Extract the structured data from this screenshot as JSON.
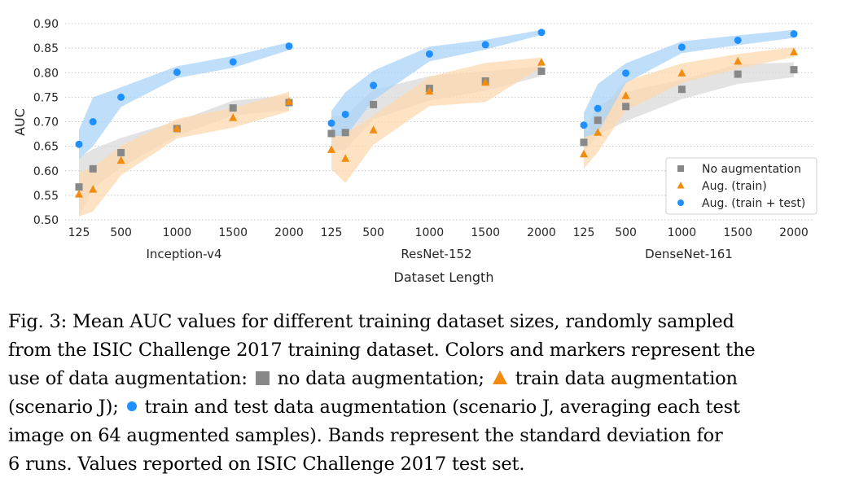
{
  "chart_data": {
    "type": "scatter",
    "ylabel": "AUC",
    "xlabel": "Dataset Length",
    "ylim": [
      0.5,
      0.9
    ],
    "yticks": [
      "0.50",
      "0.55",
      "0.60",
      "0.65",
      "0.70",
      "0.75",
      "0.80",
      "0.85",
      "0.90"
    ],
    "xticks": [
      "125",
      "500",
      "1000",
      "1500",
      "2000"
    ],
    "x_values": [
      125,
      250,
      500,
      1000,
      1500,
      2000
    ],
    "grid": true,
    "legend_position": "lower-right",
    "legend": [
      {
        "name": "No augmentation",
        "marker": "square",
        "color": "#888888"
      },
      {
        "name": "Aug. (train)",
        "marker": "triangle",
        "color": "#f28c0f"
      },
      {
        "name": "Aug. (train + test)",
        "marker": "circle",
        "color": "#1e90ff"
      }
    ],
    "panels": [
      {
        "title": "Inception-v4",
        "series": [
          {
            "name": "No augmentation",
            "values": [
              0.567,
              0.604,
              0.637,
              0.686,
              0.728,
              0.739
            ],
            "band": [
              0.06,
              0.04,
              0.03,
              0.015,
              0.015,
              0.015
            ]
          },
          {
            "name": "Aug. (train)",
            "values": [
              0.552,
              0.562,
              0.621,
              0.686,
              0.708,
              0.741
            ],
            "band": [
              0.045,
              0.045,
              0.03,
              0.02,
              0.02,
              0.02
            ]
          },
          {
            "name": "Aug. (train + test)",
            "values": [
              0.654,
              0.7,
              0.75,
              0.801,
              0.822,
              0.854
            ],
            "band": [
              0.03,
              0.05,
              0.02,
              0.012,
              0.012,
              0.008
            ]
          }
        ]
      },
      {
        "title": "ResNet-152",
        "series": [
          {
            "name": "No augmentation",
            "values": [
              0.676,
              0.678,
              0.735,
              0.768,
              0.783,
              0.803
            ],
            "band": [
              0.035,
              0.035,
              0.03,
              0.025,
              0.02,
              0.01
            ]
          },
          {
            "name": "Aug. (train)",
            "values": [
              0.643,
              0.625,
              0.683,
              0.762,
              0.78,
              0.821
            ],
            "band": [
              0.04,
              0.05,
              0.03,
              0.03,
              0.04,
              0.01
            ]
          },
          {
            "name": "Aug. (train + test)",
            "values": [
              0.697,
              0.715,
              0.774,
              0.838,
              0.857,
              0.882
            ],
            "band": [
              0.025,
              0.045,
              0.03,
              0.015,
              0.01,
              0.005
            ]
          }
        ]
      },
      {
        "title": "DenseNet-161",
        "series": [
          {
            "name": "No augmentation",
            "values": [
              0.658,
              0.703,
              0.731,
              0.766,
              0.797,
              0.806
            ],
            "band": [
              0.02,
              0.03,
              0.03,
              0.02,
              0.02,
              0.015
            ]
          },
          {
            "name": "Aug. (train)",
            "values": [
              0.634,
              0.678,
              0.753,
              0.799,
              0.823,
              0.842
            ],
            "band": [
              0.03,
              0.04,
              0.03,
              0.02,
              0.015,
              0.01
            ]
          },
          {
            "name": "Aug. (train + test)",
            "values": [
              0.693,
              0.727,
              0.799,
              0.852,
              0.866,
              0.879
            ],
            "band": [
              0.025,
              0.05,
              0.02,
              0.012,
              0.01,
              0.008
            ]
          }
        ]
      }
    ]
  },
  "caption": {
    "line1": "Fig. 3: Mean AUC values for different training dataset sizes, randomly sampled",
    "line2": "from the ISIC Challenge 2017 training dataset. Colors and markers represent the",
    "line3_pre": "use of data augmentation:",
    "line3_mid": "no data augmentation;",
    "line3_post": "train data augmentation",
    "line4_pre": "(scenario J);",
    "line4_post": "train and test data augmentation (scenario J, averaging each test",
    "line5": "image on 64 augmented samples). Bands represent the standard deviation for",
    "line6": "6 runs. Values reported on ISIC Challenge 2017 test set."
  },
  "colors": {
    "no_aug": "#888888",
    "aug_train": "#f28c0f",
    "aug_train_test": "#1e90ff",
    "band_no_aug": "#d9d9d9",
    "band_aug_train": "#fcd9b0",
    "band_aug_train_test": "#a9d3f7"
  }
}
